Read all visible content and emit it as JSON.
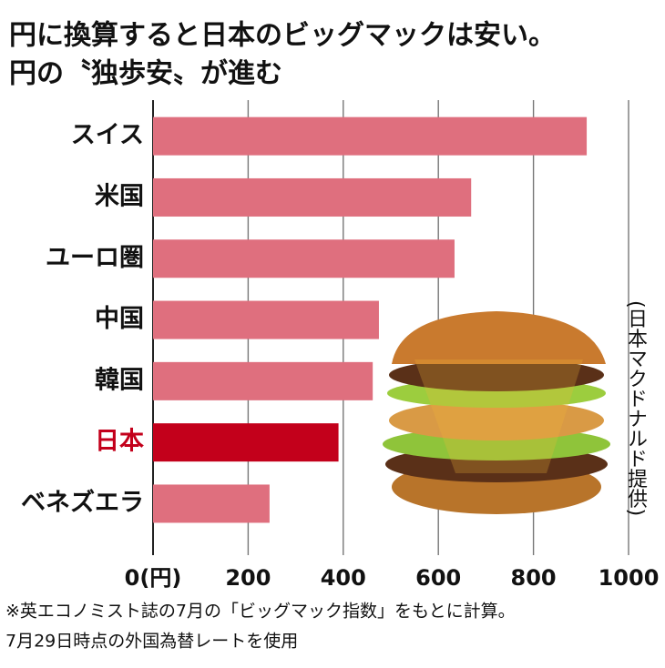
{
  "chart_data": {
    "type": "bar",
    "orientation": "horizontal",
    "title": [
      "円に換算すると日本のビッグマックは安い。",
      "円の〝独歩安〟が進む"
    ],
    "categories": [
      "スイス",
      "米国",
      "ユーロ圏",
      "中国",
      "韓国",
      "日本",
      "ベネズエラ"
    ],
    "values": [
      912,
      669,
      634,
      475,
      462,
      390,
      245
    ],
    "colors": [
      "#df6f7e",
      "#df6f7e",
      "#df6f7e",
      "#df6f7e",
      "#df6f7e",
      "#c3001b",
      "#df6f7e"
    ],
    "label_colors": [
      "#111111",
      "#111111",
      "#111111",
      "#111111",
      "#111111",
      "#c3001b",
      "#111111"
    ],
    "xlim": [
      0,
      1000
    ],
    "xticks": [
      {
        "value": 0,
        "label": "0(円)"
      },
      200,
      400,
      600,
      800,
      1000
    ],
    "grid": true,
    "credit": "(日本マクドナルド提供)",
    "notes": [
      "※英エコノミスト誌の7月の「ビッグマック指数」をもとに計算。",
      "7月29日時点の外国為替レートを使用"
    ]
  }
}
